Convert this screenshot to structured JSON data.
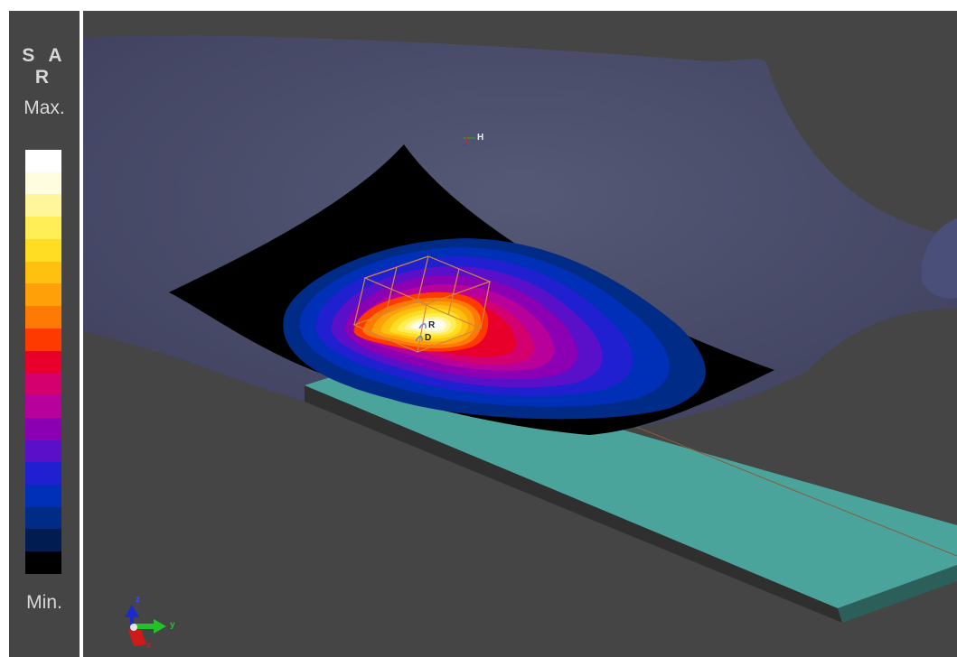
{
  "legend": {
    "title": "S A R",
    "max_label": "Max.",
    "min_label": "Min.",
    "colors": [
      "#ffffff",
      "#fffde0",
      "#fff59a",
      "#ffee55",
      "#ffdd22",
      "#ffc010",
      "#ffa008",
      "#ff7a05",
      "#ff3a00",
      "#e8002a",
      "#d4006e",
      "#b8009a",
      "#8c00b4",
      "#5a10c8",
      "#2020d0",
      "#0030b8",
      "#002c88",
      "#001c50",
      "#000000"
    ]
  },
  "viewport": {
    "labels": {
      "head_marker": "H",
      "r_marker": "R",
      "d_marker": "D",
      "axis_y": "y",
      "axis_x": "x",
      "axis_z": "z"
    }
  }
}
